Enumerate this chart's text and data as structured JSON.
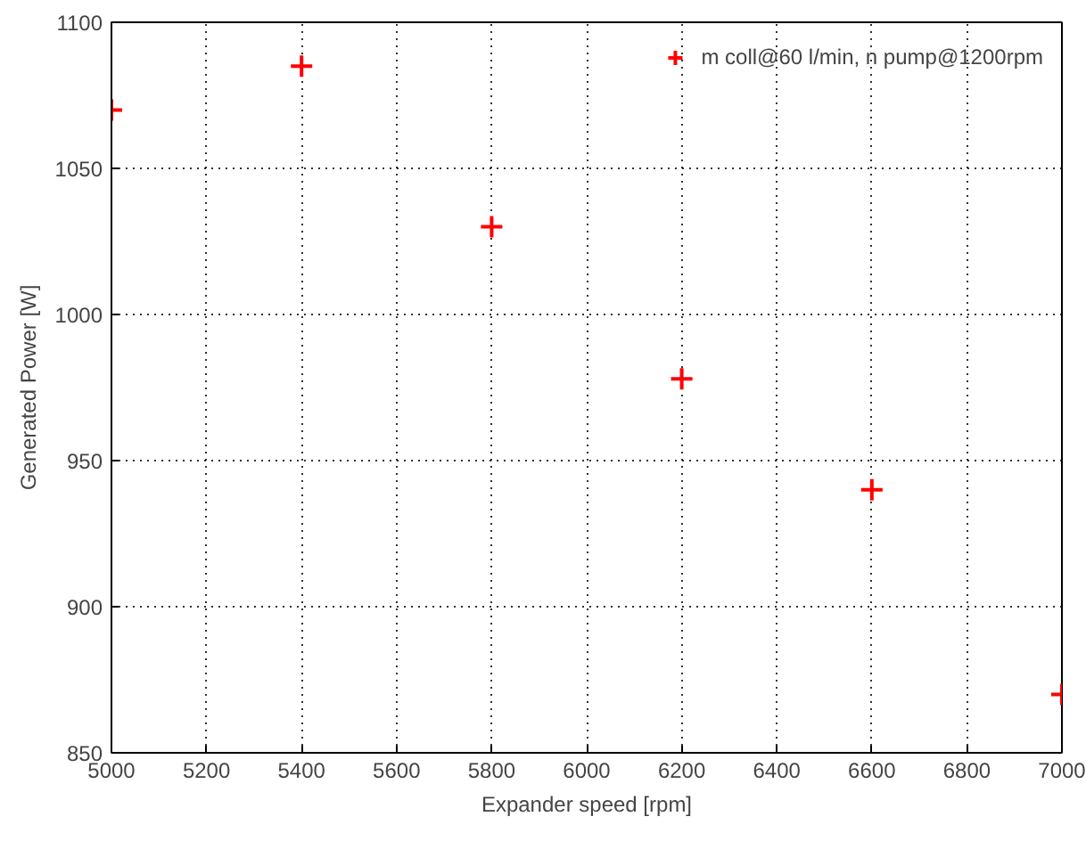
{
  "chart_data": {
    "type": "scatter",
    "xlabel": "Expander speed [rpm]",
    "ylabel": "Generated Power [W]",
    "x": [
      5000,
      5400,
      5800,
      6200,
      6600,
      7000
    ],
    "series": [
      {
        "name": "m coll@60 l/min, n pump@1200rpm",
        "color": "#ff0000",
        "values": [
          1070,
          1085,
          1030,
          978,
          940,
          870
        ]
      }
    ],
    "xlim": [
      5000,
      7000
    ],
    "ylim": [
      850,
      1100
    ],
    "xticks": [
      5000,
      5200,
      5400,
      5600,
      5800,
      6000,
      6200,
      6400,
      6600,
      6800,
      7000
    ],
    "yticks": [
      850,
      900,
      950,
      1000,
      1050,
      1100
    ],
    "grid": true,
    "legend": "top right",
    "marker": "cross"
  }
}
